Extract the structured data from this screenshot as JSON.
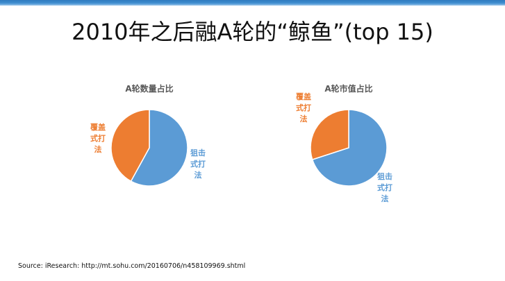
{
  "slide": {
    "title": "2010年之后融A轮的“鲸鱼”(top 15)",
    "source": "Source: iResearch: http://mt.sohu.com/20160706/n458109969.shtml"
  },
  "colors": {
    "blue": "#5b9bd5",
    "orange": "#ed7d31",
    "top_band": "#2f7bbf"
  },
  "chart_data": [
    {
      "type": "pie",
      "title": "A轮数量占比",
      "legend": "none",
      "slices": [
        {
          "label": "狙击式打法",
          "value": 0.58,
          "color": "#5b9bd5"
        },
        {
          "label": "覆盖式打法",
          "value": 0.42,
          "color": "#ed7d31"
        }
      ]
    },
    {
      "type": "pie",
      "title": "A轮市值占比",
      "legend": "none",
      "slices": [
        {
          "label": "狙击式打法",
          "value": 0.7,
          "color": "#5b9bd5"
        },
        {
          "label": "覆盖式打法",
          "value": 0.3,
          "color": "#ed7d31"
        }
      ]
    }
  ]
}
